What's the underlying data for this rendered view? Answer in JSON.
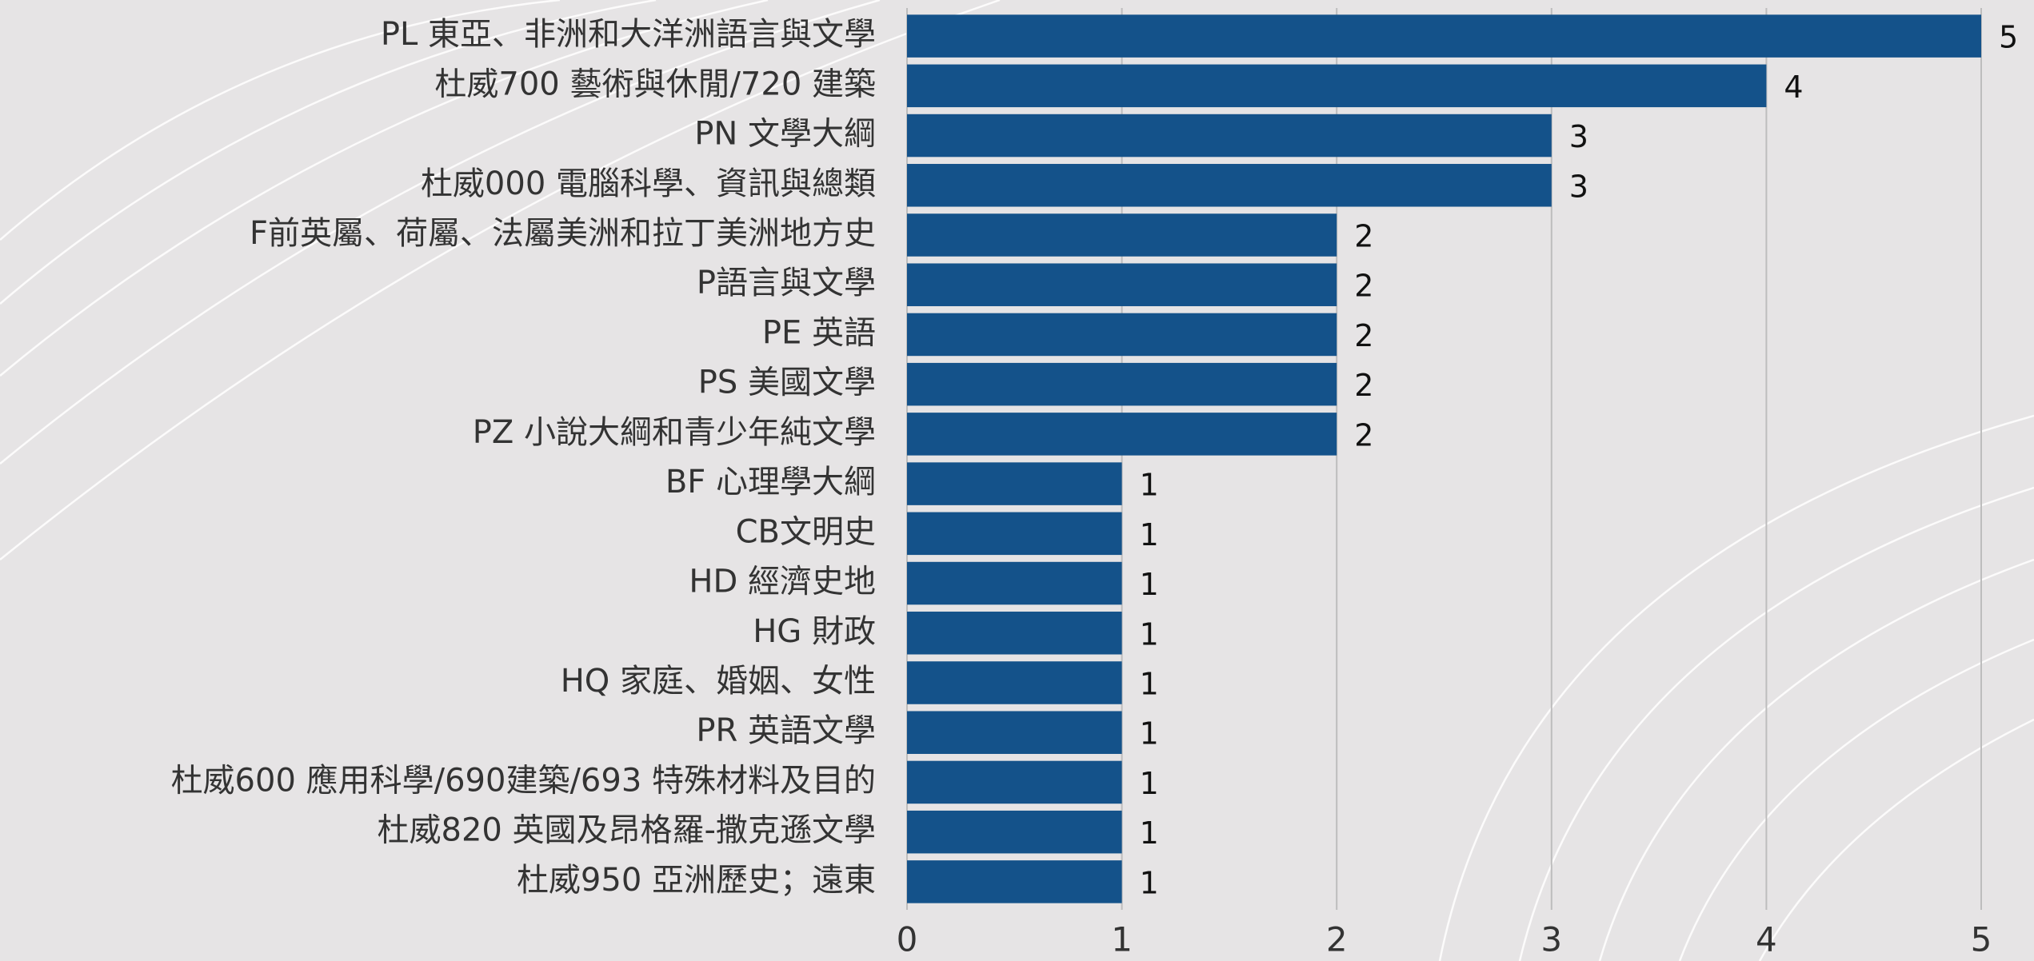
{
  "chart_data": {
    "type": "bar",
    "orientation": "horizontal",
    "categories": [
      "PL 東亞、非洲和大洋洲語言與文學",
      "杜威700 藝術與休閒/720 建築",
      "PN 文學大綱",
      "杜威000 電腦科學、資訊與總類",
      "F前英屬、荷屬、法屬美洲和拉丁美洲地方史",
      "P語言與文學",
      "PE 英語",
      "PS 美國文學",
      "PZ 小說大綱和青少年純文學",
      "BF 心理學大綱",
      "CB文明史",
      "HD 經濟史地",
      "HG 財政",
      "HQ 家庭、婚姻、女性",
      "PR 英語文學",
      "杜威600 應用科學/690建築/693 特殊材料及目的",
      "杜威820 英國及昂格羅-撒克遜文學",
      "杜威950 亞洲歷史；遠東"
    ],
    "values": [
      5,
      4,
      3,
      3,
      2,
      2,
      2,
      2,
      2,
      1,
      1,
      1,
      1,
      1,
      1,
      1,
      1,
      1
    ],
    "color": "#14528a",
    "xlim": [
      0,
      5
    ],
    "xticks": [
      0,
      1,
      2,
      3,
      4,
      5
    ],
    "grid": true
  }
}
